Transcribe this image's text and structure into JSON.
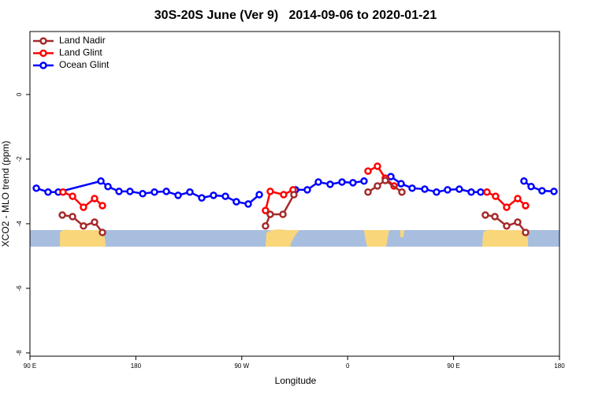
{
  "chart_data": {
    "type": "line",
    "title": "30S-20S June (Ver 9)   2014-09-06 to 2020-01-21",
    "x_label": "Longitude",
    "y_label": "XCO2 - MLO trend (ppm)",
    "xlim": [
      90,
      540
    ],
    "xticks": [
      {
        "value": 90,
        "label": "90 E"
      },
      180,
      {
        "value": 270,
        "label": "90 W"
      },
      {
        "value": 360,
        "label": "0"
      },
      {
        "value": 450,
        "label": "90 E"
      },
      {
        "value": 540,
        "label": "180"
      }
    ],
    "ylim": [
      -8.1,
      1.95
    ],
    "yticks": [
      -8,
      -6,
      -4,
      -2,
      0
    ],
    "legend": "top-left",
    "series": [
      {
        "name": "Land Nadir",
        "color": "#a52a2a",
        "x": [
          117.5,
          126.2,
          135.5,
          144.9,
          151.6,
          null,
          290.2,
          294.2,
          305.0,
          314.3,
          null,
          377.3,
          385.3,
          392.0,
          406.1,
          null,
          477.0,
          485.1,
          495.1,
          504.5,
          511.2
        ],
        "values": [
          -3.73,
          -3.78,
          -4.07,
          -3.95,
          -4.27,
          null,
          -4.07,
          -3.71,
          -3.71,
          -3.1,
          null,
          -3.02,
          -2.83,
          -2.66,
          -3.02,
          null,
          -3.73,
          -3.78,
          -4.07,
          -3.95,
          -4.27
        ]
      },
      {
        "name": "Land Glint",
        "color": "#ff0000",
        "x": [
          118.1,
          126.2,
          135.5,
          144.9,
          151.6,
          null,
          290.2,
          294.2,
          305.6,
          313.6,
          null,
          377.3,
          385.3,
          392.0,
          399.4,
          null,
          478.4,
          485.7,
          495.1,
          504.5,
          511.2
        ],
        "values": [
          -3.02,
          -3.15,
          -3.49,
          -3.22,
          -3.44,
          null,
          -3.59,
          -3.0,
          -3.1,
          -2.95,
          null,
          -2.37,
          -2.22,
          -2.59,
          -2.83,
          null,
          -3.02,
          -3.15,
          -3.49,
          -3.22,
          -3.44
        ]
      },
      {
        "name": "Ocean Glint",
        "color": "#0000ff",
        "x": [
          95.4,
          105.4,
          114.1,
          150.3,
          156.3,
          165.7,
          175.0,
          185.8,
          195.8,
          205.9,
          215.9,
          225.9,
          236.0,
          246.0,
          256.1,
          265.4,
          275.5,
          284.9,
          null,
          315.7,
          325.7,
          335.1,
          345.1,
          355.2,
          364.5,
          373.9,
          null,
          396.7,
          405.4,
          414.8,
          425.5,
          435.5,
          444.9,
          454.9,
          465.0,
          473.0,
          null,
          509.8,
          515.9,
          525.2,
          535.3
        ],
        "values": [
          -2.9,
          -3.02,
          -3.02,
          -2.68,
          -2.85,
          -3.0,
          -3.0,
          -3.07,
          -3.02,
          -3.0,
          -3.12,
          -3.02,
          -3.2,
          -3.12,
          -3.15,
          -3.32,
          -3.39,
          -3.1,
          null,
          -2.95,
          -2.95,
          -2.71,
          -2.78,
          -2.71,
          -2.73,
          -2.68,
          null,
          -2.54,
          -2.76,
          -2.9,
          -2.93,
          -3.02,
          -2.95,
          -2.93,
          -3.02,
          -3.02,
          null,
          -2.68,
          -2.85,
          -2.98,
          -3.0
        ]
      }
    ]
  }
}
